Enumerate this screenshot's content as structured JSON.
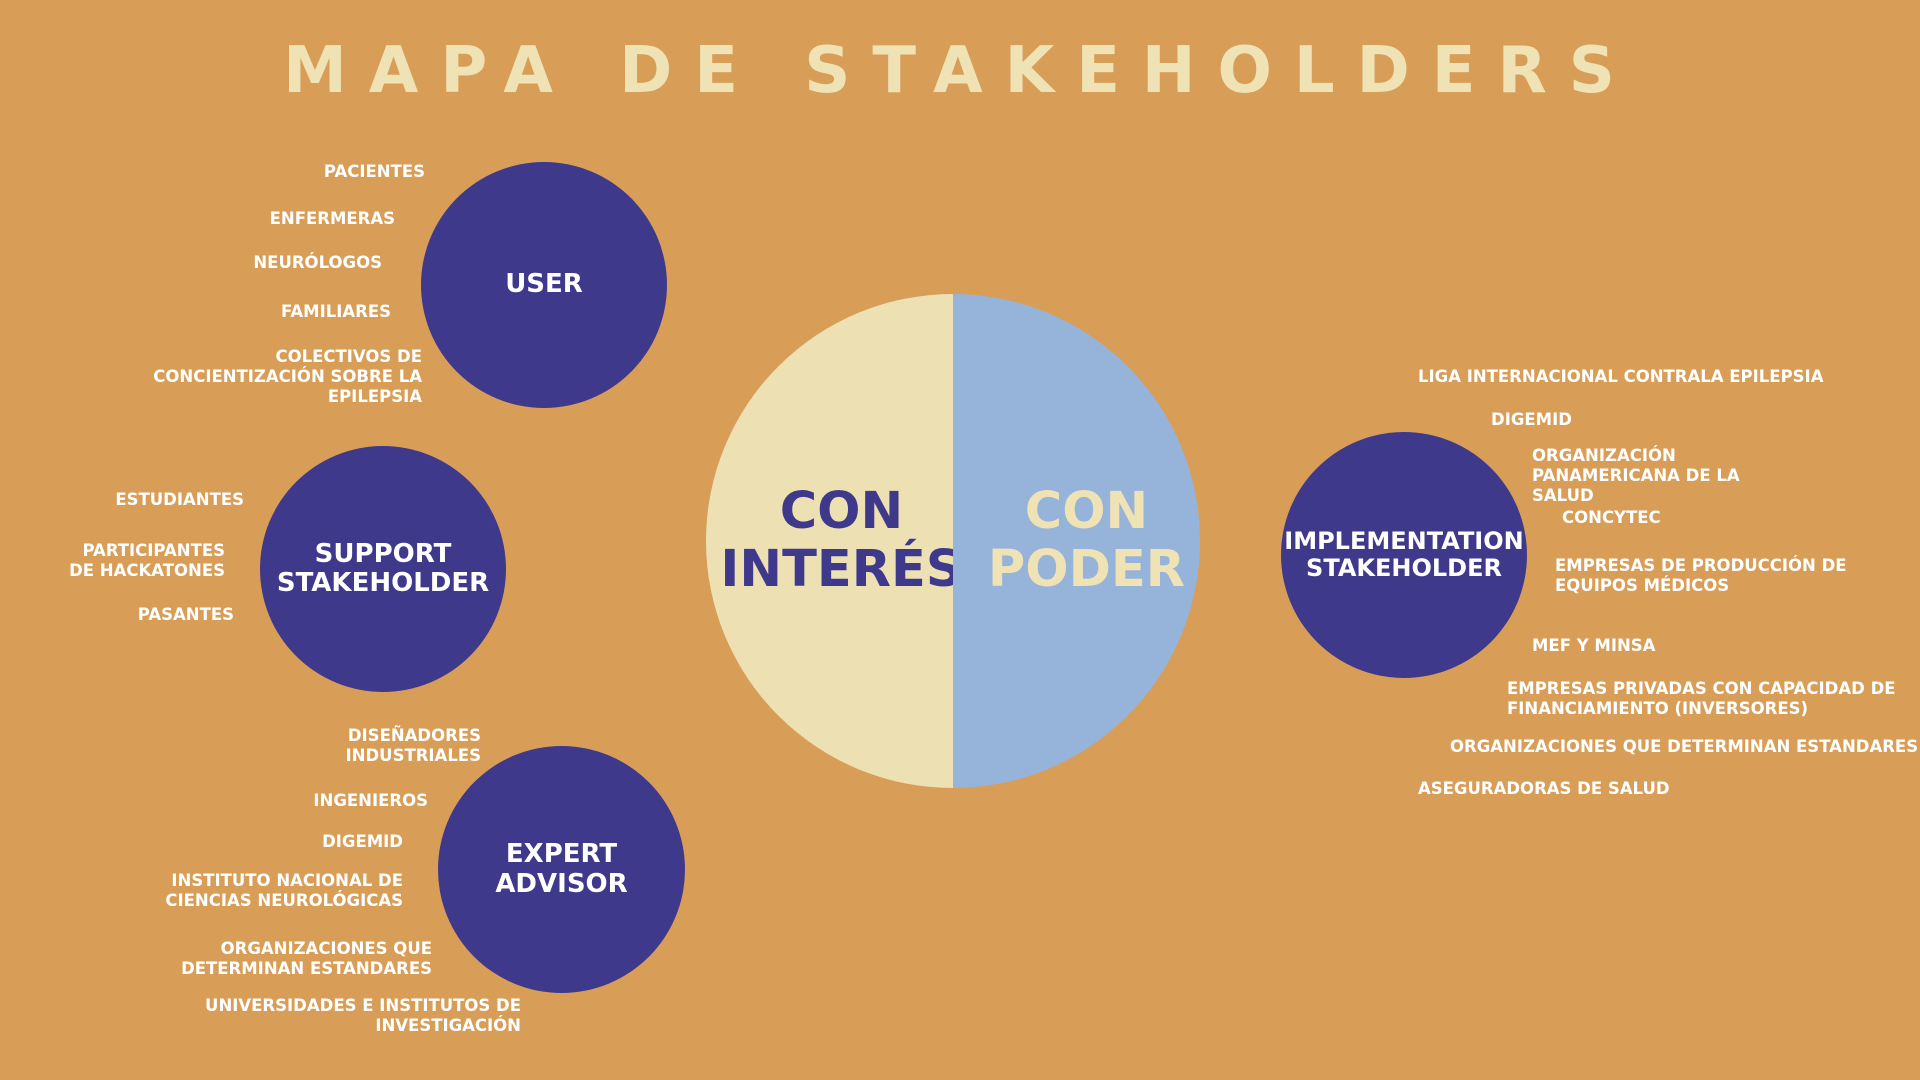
{
  "title": "MAPA DE STAKEHOLDERS",
  "colors": {
    "background": "#D89E58",
    "circle": "#3F398C",
    "interest": "#EDE1B3",
    "power": "#96B3DA",
    "title": "#EFE2B5",
    "label": "#FFFFFF"
  },
  "center": {
    "left_label": "CON\nINTERÉS",
    "right_label": "CON\nPODER"
  },
  "user": {
    "label": "USER",
    "items": [
      "PACIENTES",
      "ENFERMERAS",
      "NEURÓLOGOS",
      "FAMILIARES",
      "COLECTIVOS DE\nCONCIENTIZACIÓN SOBRE LA\nEPILEPSIA"
    ]
  },
  "support": {
    "label": "SUPPORT\nSTAKEHOLDER",
    "items": [
      "ESTUDIANTES",
      "PARTICIPANTES\nDE HACKATONES",
      "PASANTES"
    ]
  },
  "expert": {
    "label": "EXPERT ADVISOR",
    "items": [
      "DISEÑADORES\nINDUSTRIALES",
      "INGENIEROS",
      "DIGEMID",
      "INSTITUTO NACIONAL DE\nCIENCIAS NEUROLÓGICAS",
      "ORGANIZACIONES QUE\nDETERMINAN ESTANDARES",
      "UNIVERSIDADES E INSTITUTOS DE\nINVESTIGACIÓN"
    ]
  },
  "implementation": {
    "label": "IMPLEMENTATION\nSTAKEHOLDER",
    "items": [
      "LIGA INTERNACIONAL CONTRALA EPILEPSIA",
      "DIGEMID",
      "ORGANIZACIÓN\nPANAMERICANA DE LA\nSALUD",
      "CONCYTEC",
      "EMPRESAS DE PRODUCCIÓN DE\nEQUIPOS MÉDICOS",
      "MEF  Y MINSA",
      "EMPRESAS PRIVADAS CON CAPACIDAD DE\nFINANCIAMIENTO (INVERSORES)",
      "ORGANIZACIONES QUE DETERMINAN ESTANDARES",
      "ASEGURADORAS DE SALUD"
    ]
  }
}
